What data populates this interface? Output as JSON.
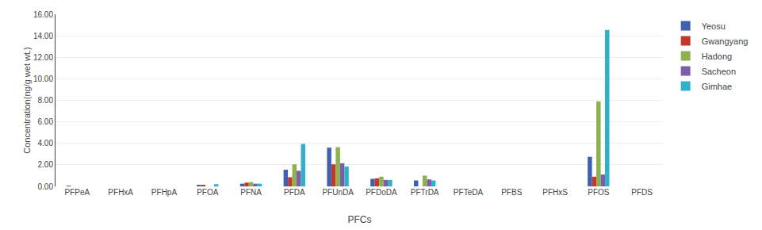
{
  "chart_data": {
    "type": "bar",
    "categories": [
      "PFPeA",
      "PFHxA",
      "PFHpA",
      "PFOA",
      "PFNA",
      "PFDA",
      "PFUnDA",
      "PFDoDA",
      "PFTrDA",
      "PFTeDA",
      "PFBS",
      "PFHxS",
      "PFOS",
      "PFDS"
    ],
    "series": [
      {
        "name": "Yeosu",
        "color": "#3f5faf",
        "values": [
          0.05,
          0.0,
          0.0,
          0.1,
          0.25,
          1.55,
          3.6,
          0.7,
          0.55,
          0.0,
          0.0,
          0.0,
          2.75,
          0.0
        ]
      },
      {
        "name": "Gwangyang",
        "color": "#c0392b",
        "values": [
          0.0,
          0.0,
          0.0,
          0.15,
          0.35,
          0.85,
          2.05,
          0.75,
          0.0,
          0.0,
          0.0,
          0.0,
          0.9,
          0.0
        ]
      },
      {
        "name": "Hadong",
        "color": "#8db050",
        "values": [
          0.0,
          0.0,
          0.0,
          0.0,
          0.4,
          2.05,
          3.65,
          0.9,
          1.0,
          0.0,
          0.0,
          0.0,
          7.9,
          0.0
        ]
      },
      {
        "name": "Sacheon",
        "color": "#7b5ea7",
        "values": [
          0.0,
          0.0,
          0.0,
          0.0,
          0.25,
          1.45,
          2.15,
          0.6,
          0.65,
          0.0,
          0.0,
          0.0,
          1.1,
          0.0
        ]
      },
      {
        "name": "Gimhae",
        "color": "#31b0c9",
        "values": [
          0.0,
          0.0,
          0.0,
          0.2,
          0.25,
          3.95,
          1.85,
          0.6,
          0.55,
          0.0,
          0.0,
          0.0,
          14.55,
          0.0
        ]
      }
    ],
    "xlabel": "PFCs",
    "ylabel": "Concentration(ng/g wet wt.)",
    "ylim": [
      0,
      16.0
    ],
    "yticks": [
      {
        "value": 0,
        "label": "0.00"
      },
      {
        "value": 2,
        "label": "2.00"
      },
      {
        "value": 4,
        "label": "4.00"
      },
      {
        "value": 6,
        "label": "6.00"
      },
      {
        "value": 8,
        "label": "8.00"
      },
      {
        "value": 10,
        "label": "10.00"
      },
      {
        "value": 12,
        "label": "12.00"
      },
      {
        "value": 14,
        "label": "14.00"
      },
      {
        "value": 16,
        "label": "16.00"
      }
    ],
    "grid": true,
    "legend": "upper right"
  }
}
